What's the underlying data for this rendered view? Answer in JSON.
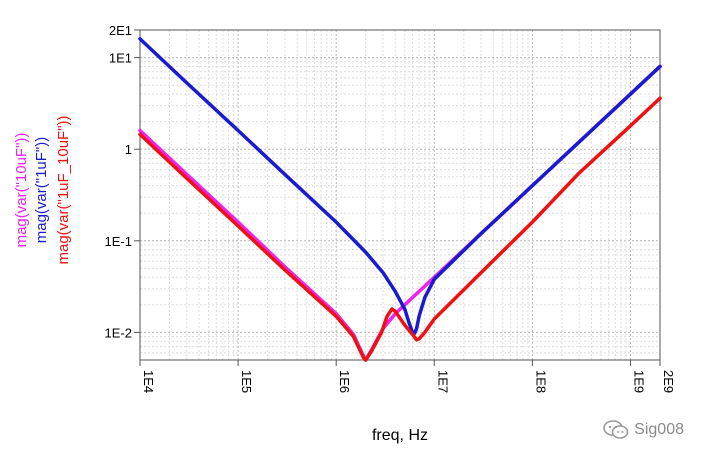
{
  "chart_data": {
    "type": "line",
    "title": "",
    "xlabel": "freq, Hz",
    "ylabel": "",
    "xscale": "log",
    "yscale": "log",
    "xlim": [
      10000,
      2000000000
    ],
    "ylim": [
      0.005,
      20
    ],
    "x_ticks": [
      {
        "value": 10000,
        "label": "1E4"
      },
      {
        "value": 100000,
        "label": "1E5"
      },
      {
        "value": 1000000,
        "label": "1E6"
      },
      {
        "value": 10000000,
        "label": "1E7"
      },
      {
        "value": 100000000,
        "label": "1E8"
      },
      {
        "value": 1000000000,
        "label": "1E9"
      },
      {
        "value": 2000000000,
        "label": "2E9"
      }
    ],
    "y_ticks": [
      {
        "value": 20,
        "label": "2E1"
      },
      {
        "value": 10,
        "label": "1E1"
      },
      {
        "value": 1,
        "label": "1"
      },
      {
        "value": 0.1,
        "label": "1E-1"
      },
      {
        "value": 0.01,
        "label": "1E-2"
      }
    ],
    "grid": true,
    "legend_position": "left-vertical",
    "series": [
      {
        "name": "mag(var(\"10uF\"))",
        "color": "#ee22ee",
        "points": [
          [
            10000,
            1.6
          ],
          [
            30000,
            0.53
          ],
          [
            100000,
            0.16
          ],
          [
            300000,
            0.052
          ],
          [
            1000000,
            0.016
          ],
          [
            1500000,
            0.0095
          ],
          [
            1900000,
            0.0055
          ],
          [
            2000000,
            0.005
          ],
          [
            2300000,
            0.0065
          ],
          [
            3000000,
            0.011
          ],
          [
            4000000,
            0.016
          ],
          [
            5000000,
            0.02
          ],
          [
            7000000,
            0.028
          ],
          [
            10000000,
            0.04
          ],
          [
            30000000,
            0.12
          ],
          [
            100000000,
            0.4
          ],
          [
            300000000,
            1.2
          ],
          [
            1000000000,
            4.0
          ],
          [
            2000000000,
            8.0
          ]
        ]
      },
      {
        "name": "mag(var(\"1uF\"))",
        "color": "#1a1ad0",
        "points": [
          [
            10000,
            16
          ],
          [
            30000,
            5.3
          ],
          [
            100000,
            1.6
          ],
          [
            300000,
            0.53
          ],
          [
            1000000,
            0.16
          ],
          [
            2000000,
            0.075
          ],
          [
            3000000,
            0.045
          ],
          [
            4000000,
            0.028
          ],
          [
            5000000,
            0.018
          ],
          [
            5500000,
            0.013
          ],
          [
            6000000,
            0.01
          ],
          [
            6300000,
            0.0098
          ],
          [
            6600000,
            0.011
          ],
          [
            7000000,
            0.015
          ],
          [
            8000000,
            0.024
          ],
          [
            10000000,
            0.038
          ],
          [
            30000000,
            0.12
          ],
          [
            100000000,
            0.4
          ],
          [
            300000000,
            1.2
          ],
          [
            1000000000,
            4.0
          ],
          [
            2000000000,
            8.0
          ]
        ]
      },
      {
        "name": "mag(var(\"1uF_10uF\"))",
        "color": "#ee1111",
        "points": [
          [
            10000,
            1.45
          ],
          [
            30000,
            0.48
          ],
          [
            100000,
            0.145
          ],
          [
            300000,
            0.048
          ],
          [
            1000000,
            0.015
          ],
          [
            1500000,
            0.009
          ],
          [
            1900000,
            0.0053
          ],
          [
            2000000,
            0.005
          ],
          [
            2300000,
            0.0063
          ],
          [
            2900000,
            0.01
          ],
          [
            3300000,
            0.015
          ],
          [
            3700000,
            0.018
          ],
          [
            4000000,
            0.017
          ],
          [
            5000000,
            0.012
          ],
          [
            6000000,
            0.0095
          ],
          [
            6600000,
            0.0083
          ],
          [
            7000000,
            0.0085
          ],
          [
            8000000,
            0.01
          ],
          [
            10000000,
            0.014
          ],
          [
            30000000,
            0.045
          ],
          [
            100000000,
            0.16
          ],
          [
            300000000,
            0.55
          ],
          [
            1000000000,
            1.8
          ],
          [
            2000000000,
            3.6
          ]
        ]
      }
    ]
  },
  "watermark": {
    "icon": "wechat-icon",
    "text": "Sig008"
  }
}
